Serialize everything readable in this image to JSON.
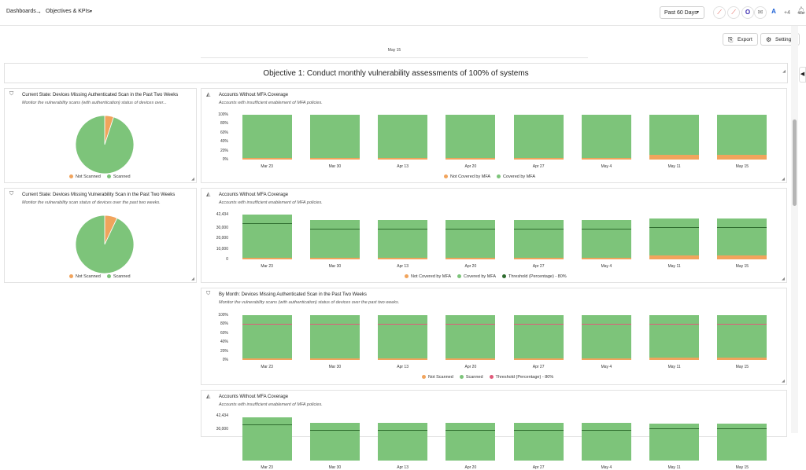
{
  "breadcrumb": {
    "root": "Dashboards",
    "current": "Objectives & KPIs"
  },
  "date_range": "Past 60 Days",
  "integrations_more": "+4",
  "actions": {
    "export": "Export",
    "settings": "Settings"
  },
  "top_fragment_label": "May 15",
  "objective_title": "Objective 1: Conduct monthly vulnerability assessments of 100% of systems",
  "colors": {
    "scanned": "#7dc47a",
    "not_scanned": "#f1a45c",
    "threshold_green": "#2e6b2e",
    "threshold_red": "#e05a7a"
  },
  "pie_cards": [
    {
      "title": "Current State: Devices Missing Authenticated Scan in the Past Two Weeks",
      "subtitle": "Monitor the vulnerability scans (with authentication) status of devices over...",
      "legend": [
        "Not Scanned",
        "Scanned"
      ],
      "chart_data": {
        "type": "pie",
        "labels": [
          "Not Scanned",
          "Scanned"
        ],
        "values": [
          5,
          95
        ]
      }
    },
    {
      "title": "Current State: Devices Missing Vulnerability Scan in the Past Two Weeks",
      "subtitle": "Monitor the vulnerability scan status of devices over the past two weeks.",
      "legend": [
        "Not Scanned",
        "Scanned"
      ],
      "chart_data": {
        "type": "pie",
        "labels": [
          "Not Scanned",
          "Scanned"
        ],
        "values": [
          7,
          93
        ]
      }
    }
  ],
  "bar_cards": [
    {
      "title": "Accounts Without MFA Coverage",
      "subtitle": "Accounts with insufficient enablement of MFA policies.",
      "legend": [
        "Not Covered by MFA",
        "Covered by MFA"
      ],
      "chart_data": {
        "type": "bar",
        "categories": [
          "Mar 23",
          "Mar 30",
          "Apr 13",
          "Apr 20",
          "Apr 27",
          "May 4",
          "May 11",
          "May 15"
        ],
        "yticks": [
          "100%",
          "80%",
          "60%",
          "40%",
          "20%",
          "0%"
        ],
        "ylim": [
          0,
          100
        ],
        "series": [
          {
            "name": "Not Covered by MFA",
            "values": [
              4,
              4,
              4,
              4,
              4,
              4,
              10,
              10
            ]
          },
          {
            "name": "Covered by MFA",
            "values": [
              96,
              96,
              96,
              96,
              96,
              96,
              90,
              90
            ]
          }
        ]
      }
    },
    {
      "title": "Accounts Without MFA Coverage",
      "subtitle": "Accounts with insufficient enablement of MFA policies.",
      "legend": [
        "Not Covered by MFA",
        "Covered by MFA",
        "Threshold (Percentage) - 80%"
      ],
      "chart_data": {
        "type": "bar",
        "categories": [
          "Mar 23",
          "Mar 30",
          "Apr 13",
          "Apr 20",
          "Apr 27",
          "May 4",
          "May 11",
          "May 15"
        ],
        "yticks": [
          "42,434",
          "30,000",
          "20,000",
          "10,000",
          "0"
        ],
        "ylim": [
          0,
          42434
        ],
        "series": [
          {
            "name": "Not Covered by MFA",
            "values": [
              1500,
              1500,
              1500,
              1500,
              1500,
              1500,
              3500,
              3500
            ]
          },
          {
            "name": "Covered by MFA",
            "values": [
              40934,
              36000,
              36000,
              36000,
              36000,
              36000,
              35000,
              35000
            ]
          }
        ],
        "threshold": {
          "name": "Threshold (Percentage) - 80%",
          "values": [
            33900,
            29400,
            29400,
            29400,
            29400,
            29400,
            30800,
            30800
          ]
        }
      }
    },
    {
      "title": "By Month: Devices Missing Authenticated Scan in the Past Two Weeks",
      "subtitle": "Monitor the vulnerability scans (with authentication) status of devices over the past two weeks.",
      "legend": [
        "Not Scanned",
        "Scanned",
        "Threshold (Percentage) - 80%"
      ],
      "chart_data": {
        "type": "bar",
        "categories": [
          "Mar 23",
          "Mar 30",
          "Apr 13",
          "Apr 20",
          "Apr 27",
          "May 4",
          "May 11",
          "May 15"
        ],
        "yticks": [
          "100%",
          "80%",
          "60%",
          "40%",
          "20%",
          "0%"
        ],
        "ylim": [
          0,
          100
        ],
        "series": [
          {
            "name": "Not Scanned",
            "values": [
              3,
              3,
              3,
              3,
              3,
              3,
              6,
              6
            ]
          },
          {
            "name": "Scanned",
            "values": [
              97,
              97,
              97,
              97,
              97,
              97,
              94,
              94
            ]
          }
        ],
        "threshold": {
          "name": "Threshold (Percentage) - 80%",
          "values": [
            80,
            80,
            80,
            80,
            80,
            80,
            80,
            80
          ]
        }
      }
    },
    {
      "title": "Accounts Without MFA Coverage",
      "subtitle": "Accounts with insufficient enablement of MFA policies.",
      "legend": [],
      "chart_data": {
        "type": "bar",
        "categories": [
          "Mar 23",
          "Mar 30",
          "Apr 13",
          "Apr 20",
          "Apr 27",
          "May 4",
          "May 11",
          "May 15"
        ],
        "yticks": [
          "42,434",
          "30,000"
        ],
        "ylim": [
          0,
          42434
        ],
        "series": [
          {
            "name": "Covered by MFA",
            "values": [
              40934,
              36000,
              36000,
              36000,
              36000,
              36000,
              35000,
              35000
            ]
          }
        ],
        "threshold": {
          "name": "Threshold (Percentage) - 80%",
          "values": [
            33900,
            29400,
            29400,
            29400,
            29400,
            29400,
            30800,
            30800
          ]
        }
      }
    }
  ]
}
